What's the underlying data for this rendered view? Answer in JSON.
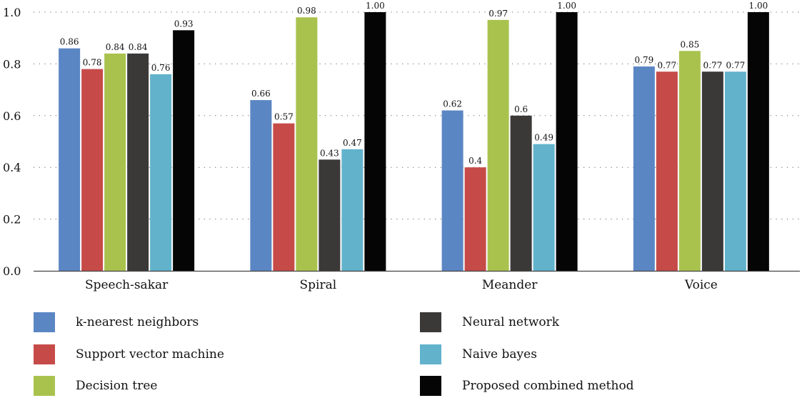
{
  "chart_data": {
    "type": "bar",
    "categories": [
      "Speech-sakar",
      "Spiral",
      "Meander",
      "Voice"
    ],
    "ylim": [
      0,
      1.0
    ],
    "yticks": [
      "0.0",
      "0.2",
      "0.4",
      "0.6",
      "0.8",
      "1.0"
    ],
    "grid": "dotted horizontal",
    "legend_position": "bottom",
    "series": [
      {
        "name": "k-nearest neighbors",
        "color": "#5B86C4",
        "values": [
          0.86,
          0.66,
          0.62,
          0.79
        ],
        "labels": [
          "0.86",
          "0.66",
          "0.62",
          "0.79"
        ]
      },
      {
        "name": "Support vector machine",
        "color": "#C64B48",
        "values": [
          0.78,
          0.57,
          0.4,
          0.77
        ],
        "labels": [
          "0.78",
          "0.57",
          "0.4",
          "0.77"
        ]
      },
      {
        "name": "Decision tree",
        "color": "#A9C24E",
        "values": [
          0.84,
          0.98,
          0.97,
          0.85
        ],
        "labels": [
          "0.84",
          "0.98",
          "0.97",
          "0.85"
        ]
      },
      {
        "name": "Neural network",
        "color": "#3B3838",
        "values": [
          0.84,
          0.43,
          0.6,
          0.77
        ],
        "labels": [
          "0.84",
          "0.43",
          "0.6",
          "0.77"
        ]
      },
      {
        "name": "Naive bayes",
        "color": "#62B2CC",
        "values": [
          0.76,
          0.47,
          0.49,
          0.77
        ],
        "labels": [
          "0.76",
          "0.47",
          "0.49",
          "0.77"
        ]
      },
      {
        "name": "Proposed combined method",
        "color": "#050505",
        "values": [
          0.93,
          1.0,
          1.0,
          1.0
        ],
        "labels": [
          "0.93",
          "1.00",
          "1.00",
          "1.00"
        ]
      }
    ]
  }
}
